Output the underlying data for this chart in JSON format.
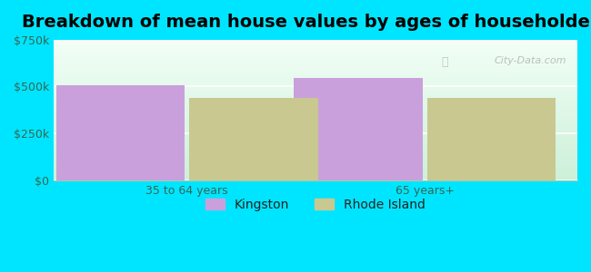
{
  "title": "Breakdown of mean house values by ages of householders",
  "categories": [
    "35 to 64 years",
    "65 years+"
  ],
  "series": [
    {
      "label": "Kingston",
      "values": [
        505000,
        545000
      ],
      "color": "#c9a0dc"
    },
    {
      "label": "Rhode Island",
      "values": [
        440000,
        440000
      ],
      "color": "#c8c890"
    }
  ],
  "ylim": [
    0,
    750000
  ],
  "yticks": [
    0,
    250000,
    500000,
    750000
  ],
  "ytick_labels": [
    "$0",
    "$250k",
    "$500k",
    "$750k"
  ],
  "bg_color_fig": "#00e5ff",
  "bar_width": 0.28,
  "title_fontsize": 14,
  "tick_fontsize": 9,
  "legend_fontsize": 10,
  "watermark": "City-Data.com"
}
